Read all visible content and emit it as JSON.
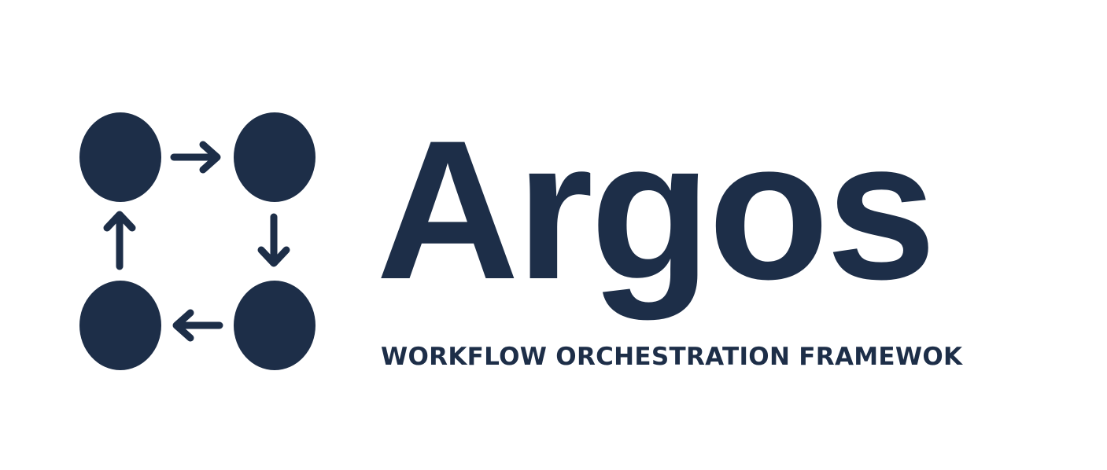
{
  "brand": {
    "name": "Argos",
    "tagline": "WORKFLOW ORCHESTRATION FRAMEWOK"
  },
  "logo": {
    "icon": "workflow-cycle-icon",
    "nodes": 4,
    "arrows": [
      "right-arrow-icon",
      "down-arrow-icon",
      "left-arrow-icon",
      "up-arrow-icon"
    ]
  },
  "colors": {
    "primary": "#1d2e48",
    "background": "#ffffff"
  }
}
